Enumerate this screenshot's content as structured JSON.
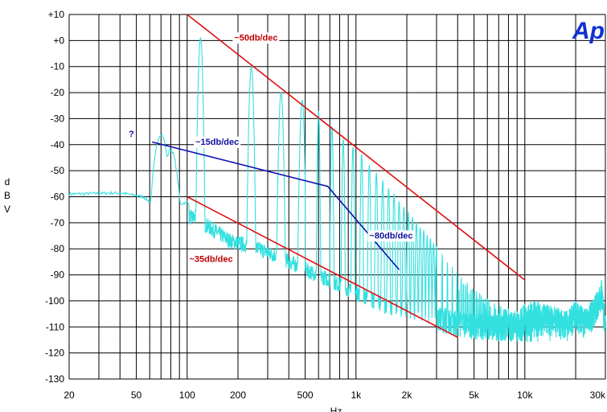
{
  "logo": {
    "text": "Ap",
    "color": "#1030d0"
  },
  "chart_data": {
    "type": "line",
    "title": "",
    "xlabel": "Hz",
    "ylabel": "dBV",
    "ylabel_chars": [
      "d",
      "B",
      "V"
    ],
    "x_scale": "log",
    "xlim": [
      20,
      30000
    ],
    "ylim": [
      -130,
      10
    ],
    "grid": true,
    "x_ticks": [
      {
        "v": 20,
        "label": "20"
      },
      {
        "v": 50,
        "label": "50"
      },
      {
        "v": 100,
        "label": "100"
      },
      {
        "v": 200,
        "label": "200"
      },
      {
        "v": 500,
        "label": "500"
      },
      {
        "v": 1000,
        "label": "1k"
      },
      {
        "v": 2000,
        "label": "2k"
      },
      {
        "v": 5000,
        "label": "5k"
      },
      {
        "v": 10000,
        "label": "10k"
      },
      {
        "v": 30000,
        "label": "30k"
      }
    ],
    "y_ticks": [
      {
        "v": 10,
        "label": "+10"
      },
      {
        "v": 0,
        "label": "+0"
      },
      {
        "v": -10,
        "label": "-10"
      },
      {
        "v": -20,
        "label": "-20"
      },
      {
        "v": -30,
        "label": "-30"
      },
      {
        "v": -40,
        "label": "-40"
      },
      {
        "v": -50,
        "label": "-50"
      },
      {
        "v": -60,
        "label": "-60"
      },
      {
        "v": -70,
        "label": "-70"
      },
      {
        "v": -80,
        "label": "-80"
      },
      {
        "v": -90,
        "label": "-90"
      },
      {
        "v": -100,
        "label": "-100"
      },
      {
        "v": -110,
        "label": "-110"
      },
      {
        "v": -120,
        "label": "-120"
      },
      {
        "v": -130,
        "label": "-130"
      }
    ],
    "spectrum": {
      "color": "#33e0e0",
      "fundamental_hz": 120,
      "baseline": [
        [
          20,
          -59
        ],
        [
          40,
          -58.5
        ],
        [
          55,
          -60
        ],
        [
          60,
          -62
        ],
        [
          70,
          -61
        ],
        [
          80,
          -64
        ],
        [
          100,
          -62
        ],
        [
          103,
          -63
        ]
      ],
      "low_peaks": [
        [
          70,
          -36
        ],
        [
          80,
          -42
        ],
        [
          92,
          -66
        ]
      ],
      "harmonic_peaks": [
        [
          120,
          1
        ],
        [
          240,
          -10
        ],
        [
          360,
          -20
        ],
        [
          480,
          -23
        ],
        [
          600,
          -27
        ],
        [
          720,
          -33
        ],
        [
          840,
          -38
        ],
        [
          960,
          -41
        ],
        [
          1080,
          -44
        ],
        [
          1200,
          -48
        ],
        [
          1320,
          -51
        ],
        [
          1440,
          -54
        ],
        [
          1560,
          -57
        ],
        [
          1680,
          -59
        ],
        [
          1800,
          -62
        ],
        [
          1920,
          -64
        ],
        [
          2040,
          -66
        ],
        [
          2160,
          -68
        ],
        [
          2280,
          -70
        ],
        [
          2400,
          -72
        ],
        [
          2520,
          -73
        ],
        [
          2640,
          -75
        ],
        [
          2760,
          -76
        ],
        [
          2880,
          -78
        ],
        [
          3000,
          -79
        ],
        [
          3240,
          -82
        ],
        [
          3480,
          -85
        ],
        [
          3720,
          -87
        ],
        [
          3960,
          -89
        ],
        [
          4200,
          -91
        ],
        [
          4560,
          -93
        ],
        [
          4920,
          -95
        ],
        [
          5400,
          -97
        ],
        [
          6000,
          -99
        ],
        [
          6600,
          -101
        ],
        [
          7200,
          -102
        ],
        [
          8000,
          -103
        ],
        [
          9000,
          -104
        ],
        [
          10000,
          -101
        ],
        [
          11500,
          -100
        ],
        [
          13000,
          -101
        ],
        [
          15000,
          -102
        ],
        [
          17500,
          -104
        ],
        [
          20000,
          -100
        ],
        [
          23000,
          -103
        ],
        [
          26000,
          -98
        ],
        [
          28500,
          -92
        ],
        [
          30000,
          -105
        ]
      ],
      "noise_floor": [
        [
          110,
          -68
        ],
        [
          180,
          -77
        ],
        [
          240,
          -79
        ],
        [
          350,
          -83
        ],
        [
          500,
          -88
        ],
        [
          700,
          -92
        ],
        [
          1000,
          -97
        ],
        [
          1500,
          -102
        ],
        [
          2000,
          -104
        ],
        [
          3000,
          -107
        ],
        [
          5000,
          -110
        ],
        [
          10000,
          -111
        ],
        [
          20000,
          -113
        ],
        [
          30000,
          -112
        ]
      ]
    },
    "annotation_lines": [
      {
        "name": "upper-slope-line",
        "color": "#e01010",
        "points": [
          [
            100,
            10
          ],
          [
            10000,
            -92
          ]
        ]
      },
      {
        "name": "lower-slope-line",
        "color": "#e01010",
        "points": [
          [
            100,
            -60
          ],
          [
            4000,
            -114
          ]
        ]
      },
      {
        "name": "blue-slope-line",
        "color": "#1010b0",
        "points": [
          [
            62,
            -39
          ],
          [
            680,
            -56
          ],
          [
            1800,
            -88
          ]
        ]
      }
    ],
    "annotations": [
      {
        "name": "upper-slope-label",
        "text": "~50db/dec",
        "color": "#c00000",
        "anchor": [
          190,
          0
        ]
      },
      {
        "name": "lower-slope-label",
        "text": "~35db/dec",
        "color": "#c00000",
        "anchor": [
          103,
          -85
        ]
      },
      {
        "name": "mid-slope-label",
        "text": "~15db/dec",
        "color": "#1010a0",
        "anchor": [
          112,
          -40
        ]
      },
      {
        "name": "steep-slope-label",
        "text": "~80db/dec",
        "color": "#1010a0",
        "anchor": [
          1200,
          -76
        ]
      },
      {
        "name": "question-label",
        "text": "?",
        "color": "#1010a0",
        "anchor": [
          45,
          -37
        ]
      }
    ]
  }
}
